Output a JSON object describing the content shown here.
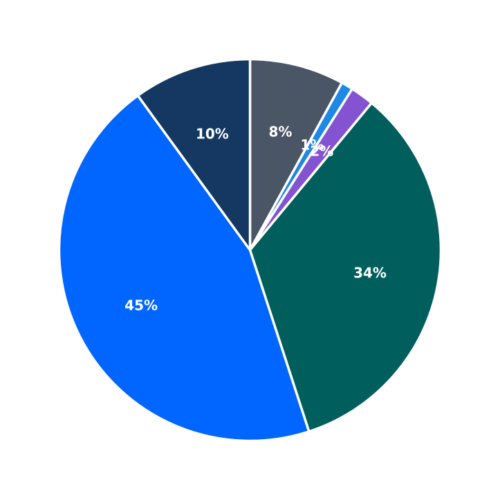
{
  "chart_data": {
    "type": "pie",
    "start_angle": "top",
    "direction": "clockwise",
    "legend": "none",
    "slices": [
      {
        "label": "8%",
        "value": 8,
        "color": "#4A5565"
      },
      {
        "label": "1%",
        "value": 1,
        "color": "#1E88E5"
      },
      {
        "label": "2%",
        "value": 2,
        "color": "#8353D1"
      },
      {
        "label": "34%",
        "value": 34,
        "color": "#005F5C"
      },
      {
        "label": "45%",
        "value": 45,
        "color": "#0066FF"
      },
      {
        "label": "10%",
        "value": 10,
        "color": "#143862"
      }
    ]
  }
}
